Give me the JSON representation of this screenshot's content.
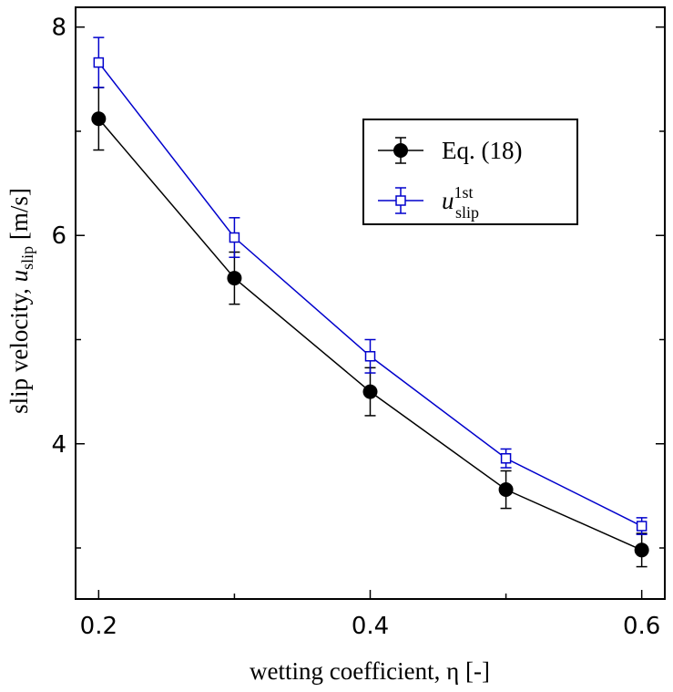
{
  "chart_data": {
    "type": "line",
    "x_label": "wetting coefficient, η [-]",
    "y_label": {
      "text": "slip velocity,",
      "var": "u",
      "sub": "slip",
      "unit": "[m/s]"
    },
    "x": [
      0.2,
      0.3,
      0.4,
      0.5,
      0.6
    ],
    "series": [
      {
        "name": "Eq. (18)",
        "color": "#000000",
        "marker": "circle",
        "values": [
          7.12,
          5.59,
          4.5,
          3.56,
          2.98
        ],
        "errors": [
          0.3,
          0.25,
          0.23,
          0.18,
          0.16
        ]
      },
      {
        "name": {
          "var": "u",
          "sub": "slip",
          "sup": "1st"
        },
        "color": "#0000cc",
        "marker": "square",
        "values": [
          7.66,
          5.98,
          4.84,
          3.86,
          3.21
        ],
        "errors": [
          0.24,
          0.19,
          0.16,
          0.09,
          0.08
        ]
      }
    ],
    "xlim": [
      0.183,
      0.617
    ],
    "xticks": [
      0.2,
      0.4,
      0.6
    ],
    "xminor": [
      0.3,
      0.5
    ],
    "ylim": [
      2.51,
      8.19
    ],
    "yticks": [
      4,
      6,
      8
    ],
    "yminor": [
      3,
      5,
      7
    ],
    "grid": false
  }
}
